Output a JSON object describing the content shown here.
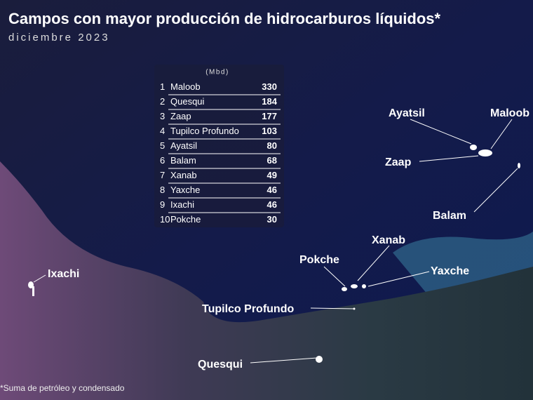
{
  "header": {
    "title": "Campos con mayor producción de hidrocarburos líquidos*",
    "subtitle": "diciembre 2023"
  },
  "table": {
    "unit": "(Mbd)",
    "rows": [
      [
        1,
        "Maloob",
        330
      ],
      [
        2,
        "Quesqui",
        184
      ],
      [
        3,
        "Zaap",
        177
      ],
      [
        4,
        "Tupilco Profundo",
        103
      ],
      [
        5,
        "Ayatsil",
        80
      ],
      [
        6,
        "Balam",
        68
      ],
      [
        7,
        "Xanab",
        49
      ],
      [
        8,
        "Yaxche",
        46
      ],
      [
        9,
        "Ixachi",
        46
      ],
      [
        10,
        "Pokche",
        30
      ]
    ]
  },
  "map_labels": {
    "ayatsil": "Ayatsil",
    "maloob": "Maloob",
    "zaap": "Zaap",
    "balam": "Balam",
    "xanab": "Xanab",
    "pokche": "Pokche",
    "yaxche": "Yaxche",
    "tupilco": "Tupilco Profundo",
    "ixachi": "Ixachi",
    "quesqui": "Quesqui"
  },
  "footnote": "*Suma de petróleo y condensado"
}
